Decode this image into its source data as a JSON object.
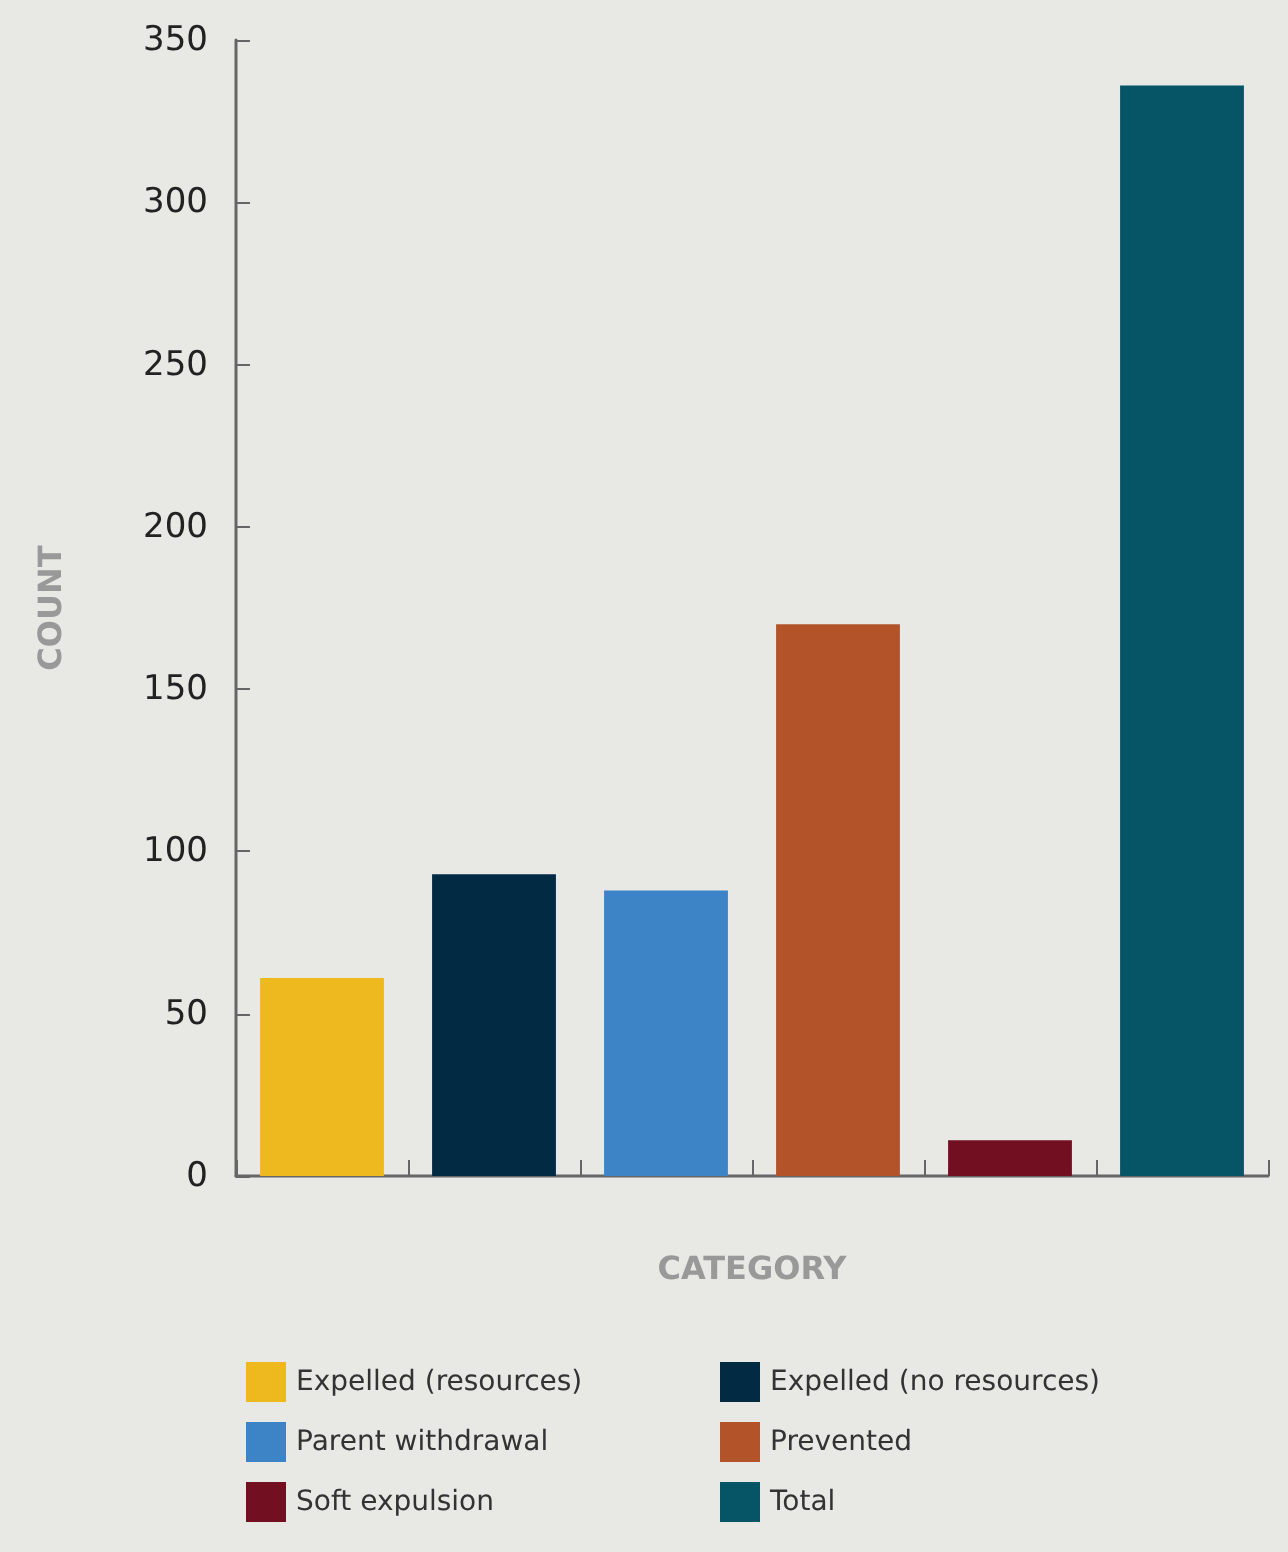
{
  "chart_data": {
    "type": "bar",
    "xlabel": "CATEGORY",
    "ylabel": "COUNT",
    "categories": [
      null,
      null,
      null,
      null,
      null,
      null
    ],
    "stacked": true,
    "series": [
      {
        "name": "Expelled (resources)",
        "color": "#eeb91e",
        "values": [
          61,
          null,
          null,
          null,
          null,
          null
        ]
      },
      {
        "name": "Expelled (no resources)",
        "color": "#032a43",
        "values": [
          null,
          93,
          null,
          null,
          null,
          null
        ]
      },
      {
        "name": "Parent withdrawal",
        "color": "#3d84c6",
        "values": [
          null,
          null,
          88,
          null,
          null,
          null
        ]
      },
      {
        "name": "Prevented",
        "color": "#b3532a",
        "values": [
          null,
          null,
          null,
          170,
          null,
          null
        ]
      },
      {
        "name": "Soft expulsion",
        "color": "#720f20",
        "values": [
          null,
          null,
          null,
          null,
          11,
          null
        ]
      },
      {
        "name": "Total",
        "color": "#055566",
        "values": [
          null,
          null,
          null,
          null,
          null,
          336
        ]
      }
    ],
    "ylim": [
      0,
      350
    ],
    "yticks": [
      0,
      50,
      100,
      150,
      200,
      250,
      300,
      350
    ],
    "grid": false,
    "legend": "bottom"
  }
}
